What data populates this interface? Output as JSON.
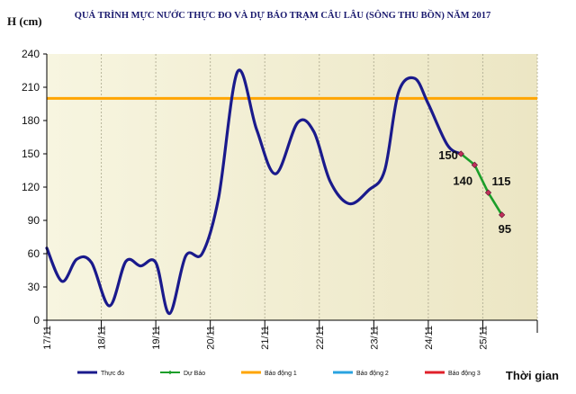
{
  "chart_data": {
    "type": "line",
    "title": "QUÁ TRÌNH MỰC NƯỚC THỰC ĐO VÀ DỰ BÁO TRẠM CÂU LÂU (SÔNG THU BỒN) NĂM 2017",
    "ylabel": "H (cm)",
    "xlabel": "Thời gian",
    "ylim": [
      0,
      240
    ],
    "yticks": [
      0,
      30,
      60,
      90,
      120,
      150,
      180,
      210,
      240
    ],
    "xlim": [
      0,
      9
    ],
    "categories": [
      "17/11",
      "18/11",
      "19/11",
      "20/11",
      "21/11",
      "22/11",
      "23/11",
      "24/11",
      "25/11"
    ],
    "grid": "vertical",
    "legend_position": "bottom",
    "colors": {
      "background": "#f0ecd0",
      "observed": "#1a1a8c",
      "forecast": "#1c9e2a",
      "alarm1": "#ffa500",
      "alarm2": "#29a3e0",
      "alarm3": "#e0202a",
      "marker": "#c0305a"
    },
    "series": [
      {
        "name": "Thực đo",
        "x": [
          0,
          0.28,
          0.55,
          0.82,
          1.15,
          1.45,
          1.72,
          2.0,
          2.25,
          2.55,
          2.85,
          3.15,
          3.5,
          3.85,
          4.2,
          4.6,
          4.9,
          5.2,
          5.55,
          5.9,
          6.2,
          6.45,
          6.75,
          7.0,
          7.35,
          7.6
        ],
        "y": [
          65,
          35,
          55,
          52,
          13,
          53,
          49,
          52,
          6,
          58,
          60,
          110,
          224,
          172,
          132,
          178,
          170,
          125,
          105,
          117,
          135,
          205,
          218,
          195,
          158,
          150
        ]
      },
      {
        "name": "Dự Báo",
        "x": [
          7.6,
          7.85,
          8.1,
          8.35
        ],
        "y": [
          150,
          140,
          115,
          95
        ]
      },
      {
        "name": "Báo động 1",
        "value": 200
      },
      {
        "name": "Báo động 2",
        "value": null
      },
      {
        "name": "Báo động 3",
        "value": null
      }
    ],
    "data_labels": [
      {
        "text": "150",
        "x": 7.6,
        "y": 150
      },
      {
        "text": "140",
        "x": 7.85,
        "y": 140
      },
      {
        "text": "115",
        "x": 8.1,
        "y": 115
      },
      {
        "text": "95",
        "x": 8.35,
        "y": 95
      }
    ]
  }
}
